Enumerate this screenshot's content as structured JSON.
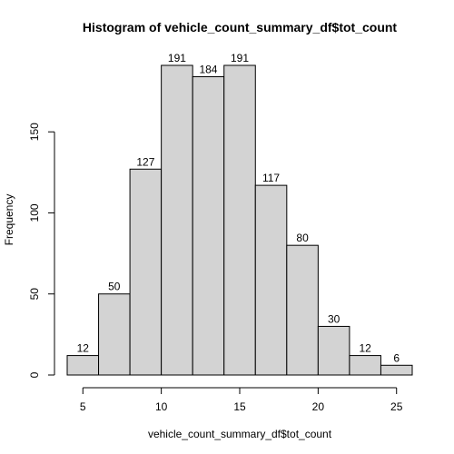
{
  "chart_data": {
    "type": "bar",
    "title": "Histogram of vehicle_count_summary_df$tot_count",
    "xlabel": "vehicle_count_summary_df$tot_count",
    "ylabel": "Frequency",
    "bins": [
      {
        "x0": 4,
        "x1": 6,
        "count": 12
      },
      {
        "x0": 6,
        "x1": 8,
        "count": 50
      },
      {
        "x0": 8,
        "x1": 10,
        "count": 127
      },
      {
        "x0": 10,
        "x1": 12,
        "count": 191
      },
      {
        "x0": 12,
        "x1": 14,
        "count": 184
      },
      {
        "x0": 14,
        "x1": 16,
        "count": 191
      },
      {
        "x0": 16,
        "x1": 18,
        "count": 117
      },
      {
        "x0": 18,
        "x1": 20,
        "count": 80
      },
      {
        "x0": 20,
        "x1": 22,
        "count": 30
      },
      {
        "x0": 22,
        "x1": 24,
        "count": 12
      },
      {
        "x0": 24,
        "x1": 26,
        "count": 6
      }
    ],
    "xlim": [
      4,
      26
    ],
    "ylim": [
      0,
      191
    ],
    "xticks": [
      "5",
      "10",
      "15",
      "20",
      "25"
    ],
    "yticks": [
      "0",
      "50",
      "100",
      "150"
    ],
    "grid": false,
    "bar_color": "#d3d3d3"
  }
}
